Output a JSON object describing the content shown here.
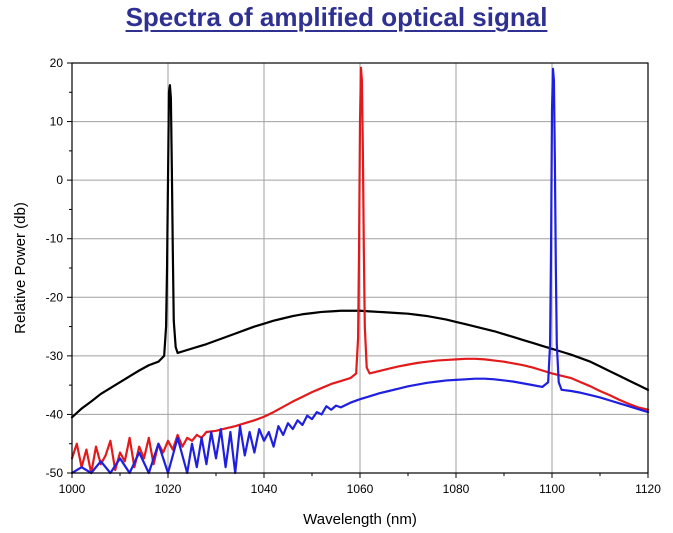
{
  "chart_data": {
    "type": "line",
    "title": "Spectra of amplified optical signal",
    "xlabel": "Wavelength (nm)",
    "ylabel": "Relative Power (db)",
    "xlim": [
      1000,
      1120
    ],
    "ylim": [
      -50,
      20
    ],
    "xticks": [
      1000,
      1020,
      1040,
      1060,
      1080,
      1100,
      1120
    ],
    "yticks": [
      20,
      10,
      0,
      -10,
      -20,
      -30,
      -40,
      -50
    ],
    "grid": true,
    "legend": "none",
    "series": [
      {
        "color": "#000000",
        "peak_nm": 1020,
        "points": [
          [
            1000,
            -40.5
          ],
          [
            1002,
            -39.0
          ],
          [
            1004,
            -37.8
          ],
          [
            1006,
            -36.5
          ],
          [
            1008,
            -35.5
          ],
          [
            1010,
            -34.5
          ],
          [
            1012,
            -33.5
          ],
          [
            1014,
            -32.5
          ],
          [
            1016,
            -31.6
          ],
          [
            1018,
            -31.0
          ],
          [
            1019.2,
            -30.0
          ],
          [
            1019.6,
            -25.0
          ],
          [
            1019.8,
            -15.0
          ],
          [
            1020.0,
            0.0
          ],
          [
            1020.2,
            15.0
          ],
          [
            1020.4,
            16.2
          ],
          [
            1020.6,
            14.0
          ],
          [
            1020.8,
            2.0
          ],
          [
            1021.0,
            -12.0
          ],
          [
            1021.2,
            -24.0
          ],
          [
            1021.6,
            -28.5
          ],
          [
            1022,
            -29.5
          ],
          [
            1024,
            -29.0
          ],
          [
            1026,
            -28.5
          ],
          [
            1028,
            -28.0
          ],
          [
            1030,
            -27.4
          ],
          [
            1032,
            -26.8
          ],
          [
            1034,
            -26.2
          ],
          [
            1036,
            -25.6
          ],
          [
            1038,
            -25.0
          ],
          [
            1040,
            -24.5
          ],
          [
            1042,
            -24.0
          ],
          [
            1044,
            -23.6
          ],
          [
            1046,
            -23.2
          ],
          [
            1048,
            -22.9
          ],
          [
            1050,
            -22.7
          ],
          [
            1052,
            -22.5
          ],
          [
            1054,
            -22.4
          ],
          [
            1056,
            -22.3
          ],
          [
            1058,
            -22.3
          ],
          [
            1060,
            -22.3
          ],
          [
            1062,
            -22.4
          ],
          [
            1064,
            -22.5
          ],
          [
            1066,
            -22.6
          ],
          [
            1068,
            -22.7
          ],
          [
            1070,
            -22.8
          ],
          [
            1072,
            -23.0
          ],
          [
            1074,
            -23.2
          ],
          [
            1076,
            -23.5
          ],
          [
            1078,
            -23.8
          ],
          [
            1080,
            -24.2
          ],
          [
            1082,
            -24.6
          ],
          [
            1084,
            -25.0
          ],
          [
            1086,
            -25.4
          ],
          [
            1088,
            -25.8
          ],
          [
            1090,
            -26.3
          ],
          [
            1092,
            -26.8
          ],
          [
            1094,
            -27.3
          ],
          [
            1096,
            -27.8
          ],
          [
            1098,
            -28.3
          ],
          [
            1100,
            -28.8
          ],
          [
            1102,
            -29.3
          ],
          [
            1104,
            -29.8
          ],
          [
            1106,
            -30.4
          ],
          [
            1108,
            -31.0
          ],
          [
            1110,
            -31.8
          ],
          [
            1112,
            -32.6
          ],
          [
            1114,
            -33.4
          ],
          [
            1116,
            -34.2
          ],
          [
            1118,
            -35.0
          ],
          [
            1120,
            -35.8
          ]
        ]
      },
      {
        "color": "#e31a1c",
        "peak_nm": 1060,
        "points": [
          [
            1000,
            -47.5
          ],
          [
            1001,
            -45.0
          ],
          [
            1002,
            -49.0
          ],
          [
            1003,
            -46.0
          ],
          [
            1004,
            -50.0
          ],
          [
            1005,
            -45.5
          ],
          [
            1006,
            -48.5
          ],
          [
            1007,
            -47.0
          ],
          [
            1008,
            -44.5
          ],
          [
            1009,
            -49.5
          ],
          [
            1010,
            -46.5
          ],
          [
            1011,
            -48.0
          ],
          [
            1012,
            -44.0
          ],
          [
            1013,
            -49.0
          ],
          [
            1014,
            -45.5
          ],
          [
            1015,
            -47.5
          ],
          [
            1016,
            -44.0
          ],
          [
            1017,
            -48.5
          ],
          [
            1018,
            -45.0
          ],
          [
            1019,
            -46.5
          ],
          [
            1020,
            -44.5
          ],
          [
            1021,
            -46.0
          ],
          [
            1022,
            -43.5
          ],
          [
            1023,
            -45.5
          ],
          [
            1024,
            -44.0
          ],
          [
            1025,
            -44.5
          ],
          [
            1026,
            -43.5
          ],
          [
            1027,
            -44.0
          ],
          [
            1028,
            -43.0
          ],
          [
            1030,
            -42.8
          ],
          [
            1032,
            -42.4
          ],
          [
            1034,
            -42.0
          ],
          [
            1036,
            -41.5
          ],
          [
            1038,
            -41.0
          ],
          [
            1040,
            -40.4
          ],
          [
            1042,
            -39.6
          ],
          [
            1044,
            -38.7
          ],
          [
            1046,
            -37.8
          ],
          [
            1048,
            -37.0
          ],
          [
            1050,
            -36.2
          ],
          [
            1052,
            -35.5
          ],
          [
            1054,
            -34.8
          ],
          [
            1056,
            -34.3
          ],
          [
            1058,
            -33.8
          ],
          [
            1059.2,
            -33.0
          ],
          [
            1059.6,
            -27.0
          ],
          [
            1059.8,
            -12.0
          ],
          [
            1060.0,
            10.0
          ],
          [
            1060.2,
            19.2
          ],
          [
            1060.4,
            17.0
          ],
          [
            1060.6,
            5.0
          ],
          [
            1060.8,
            -12.0
          ],
          [
            1061.0,
            -25.0
          ],
          [
            1061.4,
            -32.0
          ],
          [
            1062,
            -33.0
          ],
          [
            1064,
            -32.6
          ],
          [
            1066,
            -32.2
          ],
          [
            1068,
            -31.8
          ],
          [
            1070,
            -31.5
          ],
          [
            1072,
            -31.2
          ],
          [
            1074,
            -31.0
          ],
          [
            1076,
            -30.8
          ],
          [
            1078,
            -30.7
          ],
          [
            1080,
            -30.6
          ],
          [
            1082,
            -30.5
          ],
          [
            1084,
            -30.5
          ],
          [
            1086,
            -30.6
          ],
          [
            1088,
            -30.8
          ],
          [
            1090,
            -31.0
          ],
          [
            1092,
            -31.3
          ],
          [
            1094,
            -31.6
          ],
          [
            1096,
            -32.0
          ],
          [
            1098,
            -32.5
          ],
          [
            1100,
            -33.0
          ],
          [
            1102,
            -33.4
          ],
          [
            1104,
            -33.8
          ],
          [
            1106,
            -34.5
          ],
          [
            1108,
            -35.2
          ],
          [
            1110,
            -36.0
          ],
          [
            1112,
            -36.7
          ],
          [
            1114,
            -37.5
          ],
          [
            1116,
            -38.2
          ],
          [
            1118,
            -38.8
          ],
          [
            1120,
            -39.2
          ]
        ]
      },
      {
        "color": "#1f1fe0",
        "peak_nm": 1100,
        "points": [
          [
            1000,
            -50.0
          ],
          [
            1002,
            -49.0
          ],
          [
            1004,
            -50.0
          ],
          [
            1006,
            -48.0
          ],
          [
            1008,
            -50.0
          ],
          [
            1010,
            -47.5
          ],
          [
            1012,
            -50.0
          ],
          [
            1014,
            -46.5
          ],
          [
            1016,
            -50.0
          ],
          [
            1018,
            -45.0
          ],
          [
            1020,
            -50.0
          ],
          [
            1022,
            -44.0
          ],
          [
            1024,
            -50.0
          ],
          [
            1025,
            -45.0
          ],
          [
            1026,
            -49.0
          ],
          [
            1027,
            -44.0
          ],
          [
            1028,
            -48.5
          ],
          [
            1029,
            -43.0
          ],
          [
            1030,
            -47.5
          ],
          [
            1031,
            -42.5
          ],
          [
            1032,
            -49.0
          ],
          [
            1033,
            -43.0
          ],
          [
            1034,
            -50.0
          ],
          [
            1035,
            -42.0
          ],
          [
            1036,
            -47.0
          ],
          [
            1037,
            -43.0
          ],
          [
            1038,
            -46.5
          ],
          [
            1039,
            -42.5
          ],
          [
            1040,
            -44.5
          ],
          [
            1041,
            -43.0
          ],
          [
            1042,
            -45.5
          ],
          [
            1043,
            -42.0
          ],
          [
            1044,
            -43.5
          ],
          [
            1045,
            -41.5
          ],
          [
            1046,
            -42.5
          ],
          [
            1047,
            -41.0
          ],
          [
            1048,
            -41.8
          ],
          [
            1049,
            -40.2
          ],
          [
            1050,
            -40.8
          ],
          [
            1051,
            -39.6
          ],
          [
            1052,
            -40.0
          ],
          [
            1053,
            -38.6
          ],
          [
            1054,
            -39.2
          ],
          [
            1055,
            -38.5
          ],
          [
            1056,
            -38.8
          ],
          [
            1058,
            -38.0
          ],
          [
            1060,
            -37.4
          ],
          [
            1062,
            -36.9
          ],
          [
            1064,
            -36.4
          ],
          [
            1066,
            -36.0
          ],
          [
            1068,
            -35.6
          ],
          [
            1070,
            -35.2
          ],
          [
            1072,
            -34.9
          ],
          [
            1074,
            -34.6
          ],
          [
            1076,
            -34.4
          ],
          [
            1078,
            -34.2
          ],
          [
            1080,
            -34.1
          ],
          [
            1082,
            -34.0
          ],
          [
            1084,
            -33.9
          ],
          [
            1086,
            -33.9
          ],
          [
            1088,
            -34.0
          ],
          [
            1090,
            -34.2
          ],
          [
            1092,
            -34.4
          ],
          [
            1094,
            -34.7
          ],
          [
            1096,
            -35.0
          ],
          [
            1098,
            -35.3
          ],
          [
            1099.2,
            -34.5
          ],
          [
            1099.6,
            -28.0
          ],
          [
            1099.8,
            -12.0
          ],
          [
            1100.0,
            12.0
          ],
          [
            1100.2,
            19.0
          ],
          [
            1100.4,
            17.0
          ],
          [
            1100.6,
            3.0
          ],
          [
            1100.8,
            -15.0
          ],
          [
            1101.0,
            -28.0
          ],
          [
            1101.4,
            -34.5
          ],
          [
            1102,
            -35.8
          ],
          [
            1104,
            -36.0
          ],
          [
            1106,
            -36.3
          ],
          [
            1108,
            -36.7
          ],
          [
            1110,
            -37.1
          ],
          [
            1112,
            -37.6
          ],
          [
            1114,
            -38.1
          ],
          [
            1116,
            -38.6
          ],
          [
            1118,
            -39.1
          ],
          [
            1120,
            -39.6
          ]
        ]
      }
    ]
  }
}
